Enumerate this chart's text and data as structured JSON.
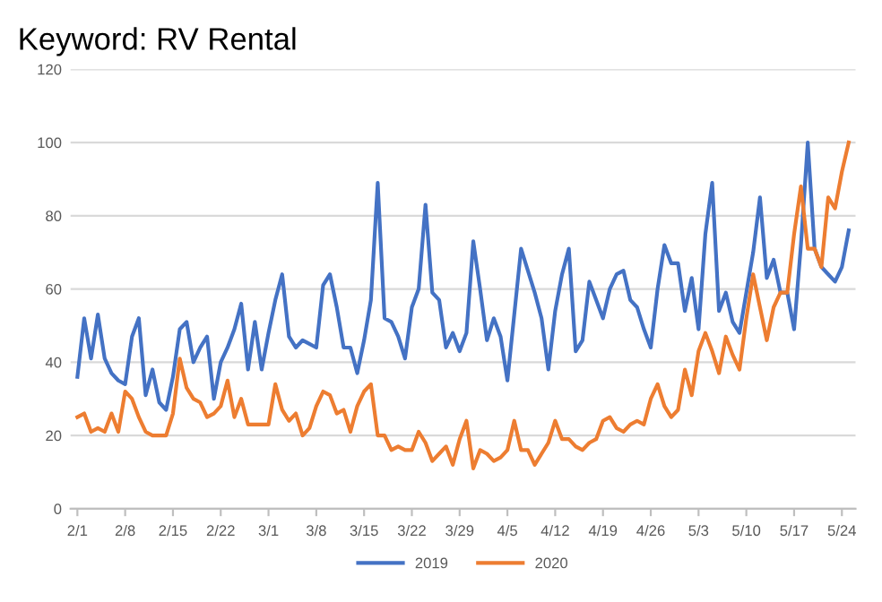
{
  "chart_data": {
    "type": "line",
    "title": "Keyword: RV Rental",
    "categories": [
      "2/1",
      null,
      null,
      null,
      null,
      null,
      null,
      "2/8",
      null,
      null,
      null,
      null,
      null,
      null,
      "2/15",
      null,
      null,
      null,
      null,
      null,
      null,
      "2/22",
      null,
      null,
      null,
      null,
      null,
      null,
      "3/1",
      null,
      null,
      null,
      null,
      null,
      null,
      "3/8",
      null,
      null,
      null,
      null,
      null,
      null,
      "3/15",
      null,
      null,
      null,
      null,
      null,
      null,
      "3/22",
      null,
      null,
      null,
      null,
      null,
      null,
      "3/29",
      null,
      null,
      null,
      null,
      null,
      null,
      "4/5",
      null,
      null,
      null,
      null,
      null,
      null,
      "4/12",
      null,
      null,
      null,
      null,
      null,
      null,
      "4/19",
      null,
      null,
      null,
      null,
      null,
      null,
      "4/26",
      null,
      null,
      null,
      null,
      null,
      null,
      "5/3",
      null,
      null,
      null,
      null,
      null,
      null,
      "5/10",
      null,
      null,
      null,
      null,
      null,
      null,
      "5/17",
      null,
      null,
      null,
      null,
      null,
      null,
      "5/24",
      null
    ],
    "series": [
      {
        "name": "2019",
        "color": "#4472c4",
        "values": [
          36,
          52,
          41,
          53,
          41,
          37,
          35,
          34,
          47,
          52,
          31,
          38,
          29,
          27,
          36,
          49,
          51,
          40,
          44,
          47,
          30,
          40,
          44,
          49,
          56,
          38,
          51,
          38,
          48,
          57,
          64,
          47,
          44,
          46,
          45,
          44,
          61,
          64,
          55,
          44,
          44,
          37,
          46,
          57,
          89,
          52,
          51,
          47,
          41,
          55,
          60,
          83,
          59,
          57,
          44,
          48,
          43,
          48,
          73,
          60,
          46,
          52,
          47,
          35,
          53,
          71,
          65,
          59,
          52,
          38,
          54,
          64,
          71,
          43,
          46,
          62,
          57,
          52,
          60,
          64,
          65,
          57,
          55,
          49,
          44,
          60,
          72,
          67,
          67,
          54,
          63,
          49,
          75,
          89,
          54,
          59,
          51,
          48,
          59,
          70,
          85,
          63,
          68,
          59,
          59,
          49,
          72,
          100,
          71,
          66,
          64,
          62,
          66,
          76
        ]
      },
      {
        "name": "2020",
        "color": "#ed7d31",
        "values": [
          25,
          26,
          21,
          22,
          21,
          26,
          21,
          32,
          30,
          25,
          21,
          20,
          20,
          20,
          26,
          41,
          33,
          30,
          29,
          25,
          26,
          28,
          35,
          25,
          30,
          23,
          23,
          23,
          23,
          34,
          27,
          24,
          26,
          20,
          22,
          28,
          32,
          31,
          26,
          27,
          21,
          28,
          32,
          34,
          20,
          20,
          16,
          17,
          16,
          16,
          21,
          18,
          13,
          15,
          17,
          12,
          19,
          24,
          11,
          16,
          15,
          13,
          14,
          16,
          24,
          16,
          16,
          12,
          15,
          18,
          24,
          19,
          19,
          17,
          16,
          18,
          19,
          24,
          25,
          22,
          21,
          23,
          24,
          23,
          30,
          34,
          28,
          25,
          27,
          38,
          31,
          43,
          48,
          43,
          37,
          47,
          42,
          38,
          52,
          64,
          55,
          46,
          55,
          59,
          59,
          75,
          88,
          71,
          71,
          66,
          85,
          82,
          92,
          100
        ]
      }
    ],
    "ylim": [
      0,
      120
    ],
    "yticks": [
      0,
      20,
      40,
      60,
      80,
      100,
      120
    ],
    "grid": "y",
    "legend": "bottom",
    "marker": "none",
    "line_style": "solid"
  }
}
